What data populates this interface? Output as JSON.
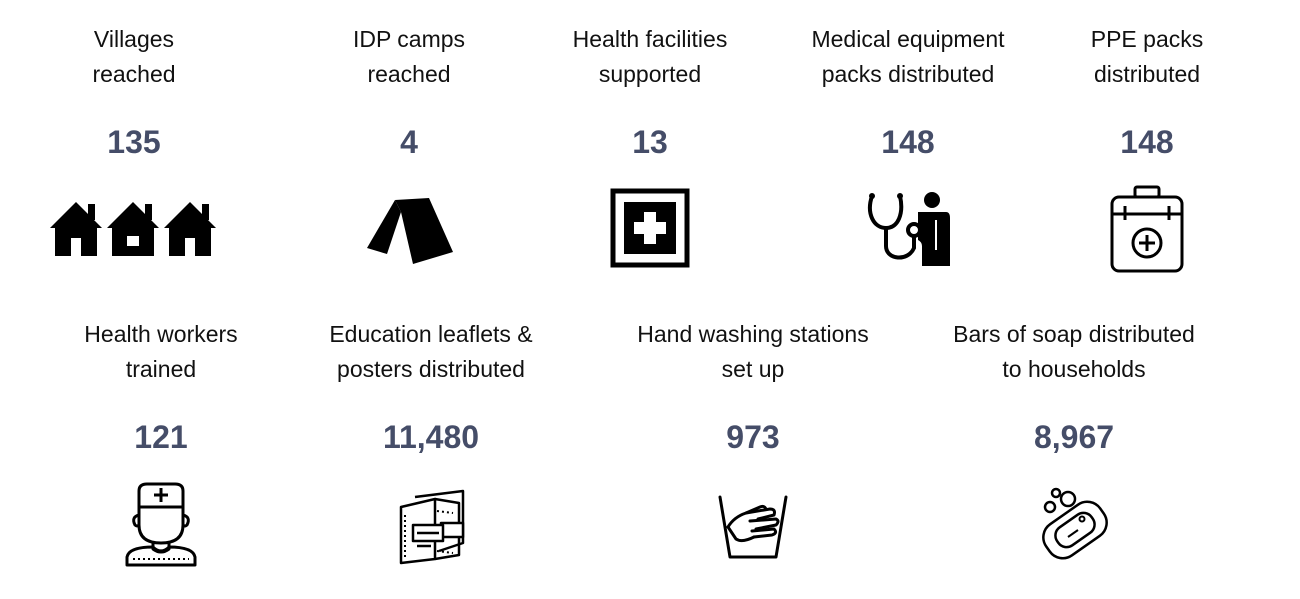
{
  "colors": {
    "value": "#454d68",
    "label": "#111111",
    "icon": "#000000"
  },
  "stats": [
    {
      "label_lines": [
        "Villages",
        "reached"
      ],
      "value": "135",
      "icon": "houses-icon"
    },
    {
      "label_lines": [
        "IDP camps",
        "reached"
      ],
      "value": "4",
      "icon": "tent-icon"
    },
    {
      "label_lines": [
        "Health facilities",
        "supported"
      ],
      "value": "13",
      "icon": "medical-cross-icon"
    },
    {
      "label_lines": [
        "Medical equipment",
        "packs distributed"
      ],
      "value": "148",
      "icon": "doctor-stethoscope-icon"
    },
    {
      "label_lines": [
        "PPE packs",
        "distributed"
      ],
      "value": "148",
      "icon": "first-aid-kit-icon"
    },
    {
      "label_lines": [
        "Health workers",
        "trained"
      ],
      "value": "121",
      "icon": "health-worker-icon"
    },
    {
      "label_lines": [
        "Education leaflets &",
        "posters distributed"
      ],
      "value": "11,480",
      "icon": "leaflets-icon"
    },
    {
      "label_lines": [
        "Hand washing stations",
        "set up"
      ],
      "value": "973",
      "icon": "hand-washing-icon"
    },
    {
      "label_lines": [
        "Bars of soap distributed",
        "to households"
      ],
      "value": "8,967",
      "icon": "soap-icon"
    }
  ]
}
